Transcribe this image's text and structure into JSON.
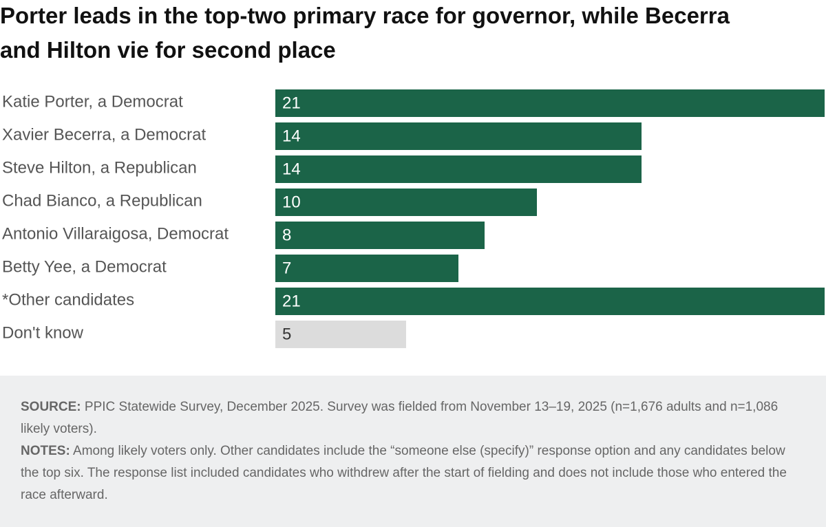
{
  "chart_data": {
    "type": "bar",
    "orientation": "horizontal",
    "title": "Porter leads in the top-two primary race for governor, while Becerra and Hilton vie for second place",
    "categories": [
      "Katie Porter, a Democrat",
      "Xavier Becerra, a Democrat",
      "Steve Hilton, a Republican",
      "Chad Bianco, a Republican",
      "Antonio Villaraigosa, Democrat",
      "Betty Yee, a Democrat",
      "*Other candidates",
      "Don't know"
    ],
    "values": [
      21,
      14,
      14,
      10,
      8,
      7,
      21,
      5
    ],
    "colors": [
      "#1b6448",
      "#1b6448",
      "#1b6448",
      "#1b6448",
      "#1b6448",
      "#1b6448",
      "#1b6448",
      "#dcdcdc"
    ],
    "source_label": "SOURCE:",
    "source": "PPIC Statewide Survey, December 2025. Survey was fielded from November 13–19, 2025 (n=1,676 adults and n=1,086 likely voters).",
    "notes_label": "NOTES:",
    "notes": "Among likely voters only. Other candidates include the “someone else (specify)” response option and any candidates below the top six. The response list included candidates who withdrew after the start of fielding and does not include those who entered the race afterward."
  }
}
